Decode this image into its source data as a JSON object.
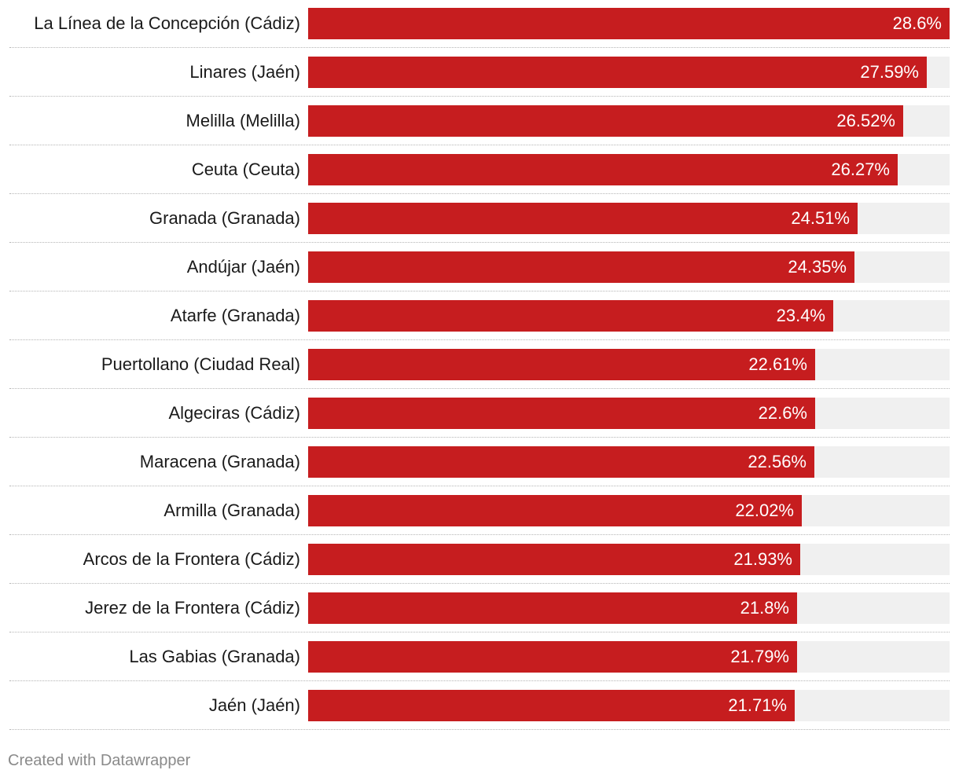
{
  "chart_data": {
    "type": "bar",
    "orientation": "horizontal",
    "bar_color": "#c61d1f",
    "track_color": "#f0f0f0",
    "value_suffix": "%",
    "xlim": [
      0,
      28.6
    ],
    "categories": [
      "La Línea de la Concepción (Cádiz)",
      "Linares (Jaén)",
      "Melilla (Melilla)",
      "Ceuta (Ceuta)",
      "Granada (Granada)",
      "Andújar (Jaén)",
      "Atarfe (Granada)",
      "Puertollano (Ciudad Real)",
      "Algeciras (Cádiz)",
      "Maracena (Granada)",
      "Armilla (Granada)",
      "Arcos de la Frontera (Cádiz)",
      "Jerez de la Frontera (Cádiz)",
      "Las Gabias (Granada)",
      "Jaén (Jaén)"
    ],
    "values": [
      28.6,
      27.59,
      26.52,
      26.27,
      24.51,
      24.35,
      23.4,
      22.61,
      22.6,
      22.56,
      22.02,
      21.93,
      21.8,
      21.79,
      21.71
    ],
    "value_labels": [
      "28.6%",
      "27.59%",
      "26.52%",
      "26.27%",
      "24.51%",
      "24.35%",
      "23.4%",
      "22.61%",
      "22.6%",
      "22.56%",
      "22.02%",
      "21.93%",
      "21.8%",
      "21.79%",
      "21.71%"
    ]
  },
  "footer": {
    "credit": "Created with Datawrapper"
  }
}
